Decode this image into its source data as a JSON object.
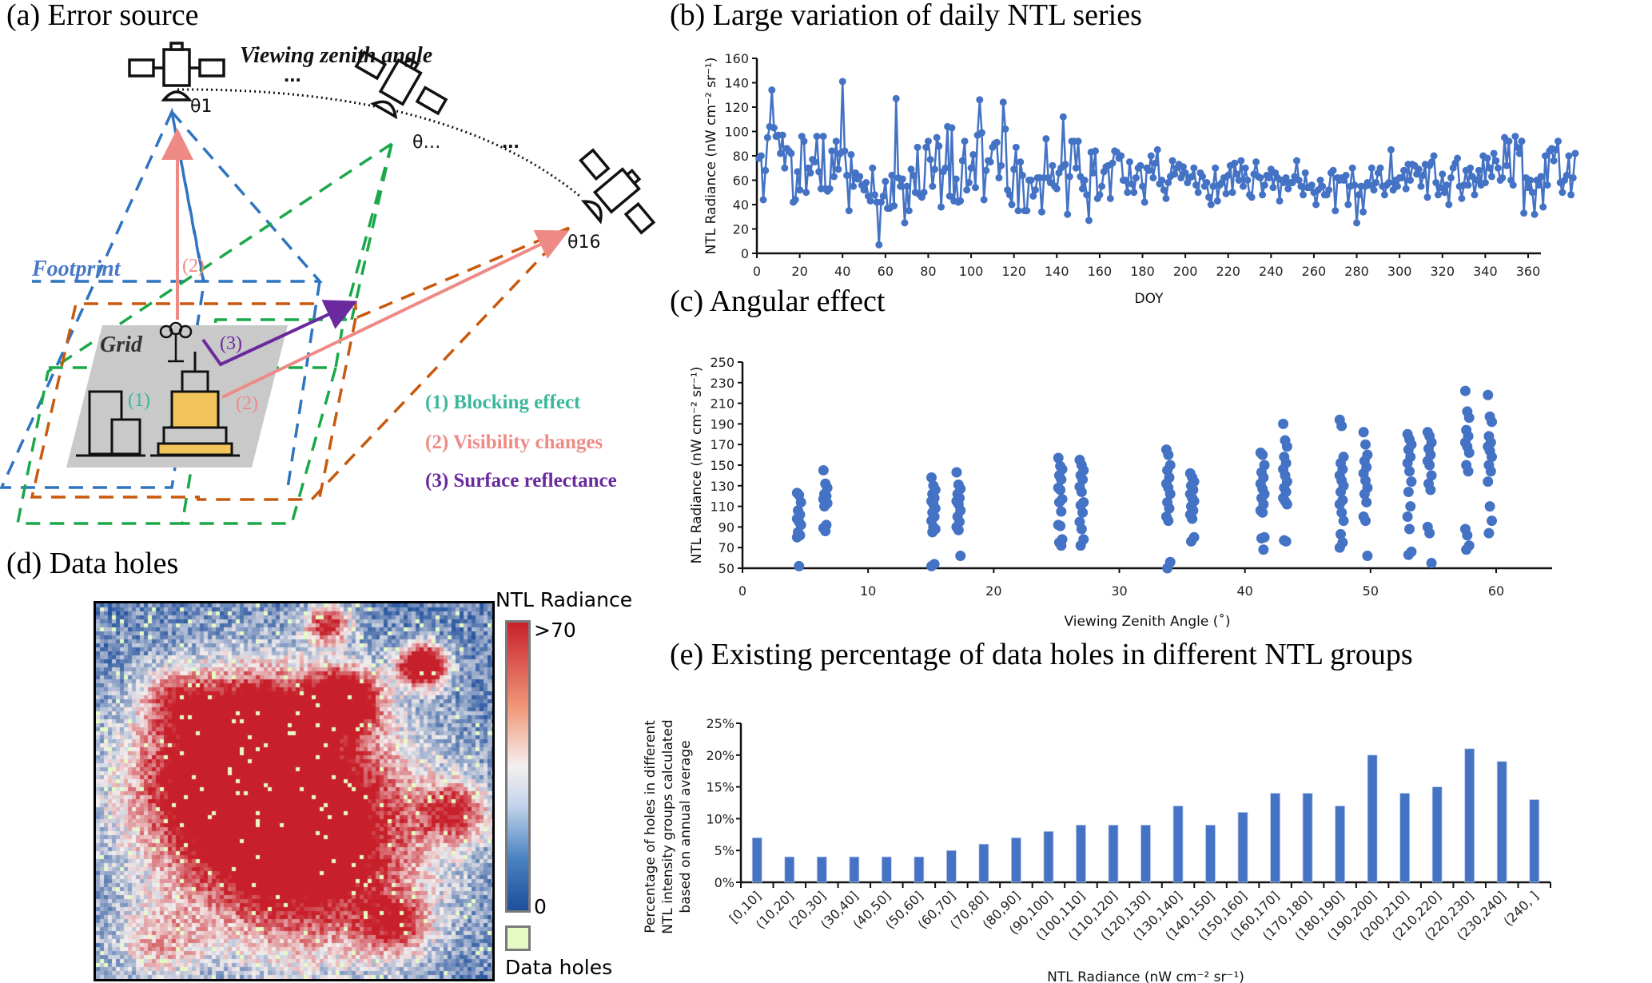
{
  "panels": {
    "a": {
      "title": "(a) Error source",
      "viewing_zenith_angle_label": "Viewing zenith angle",
      "ellipsis": "...",
      "theta_labels": [
        "θ1",
        "θ…",
        "θ16"
      ],
      "footprint_label": "Footprint",
      "grid_label": "Grid",
      "marker_1": "(1)",
      "marker_2": "(2)",
      "marker_3": "(3)",
      "legend": [
        {
          "label": "(1) Blocking effect",
          "color": "#3bb89a"
        },
        {
          "label": "(2) Visibility changes",
          "color": "#ee8a86"
        },
        {
          "label": "(3) Surface reflectance",
          "color": "#6a2a9e"
        }
      ],
      "footprint_colors": {
        "theta1": "#2f74c0",
        "theta_mid": "#1aa84a",
        "theta16": "#c8590e"
      }
    },
    "d": {
      "title": "(d) Data holes",
      "colorbar_title": "NTL Radiance",
      "colorbar_max_label": ">70",
      "colorbar_min_label": "0",
      "holes_label": "Data holes",
      "colors": {
        "low": "#1f4f9c",
        "mid": "#f4efee",
        "high": "#c8202a",
        "hole": "#e6fbc4"
      }
    }
  },
  "chart_data": [
    {
      "id": "b",
      "type": "line",
      "title": "(b) Large variation of daily NTL series",
      "xlabel": "DOY",
      "ylabel": "NTL Radiance (nW cm⁻² sr⁻¹)",
      "xlim": [
        0,
        365
      ],
      "ylim": [
        0,
        160
      ],
      "xticks": [
        0,
        20,
        40,
        60,
        80,
        100,
        120,
        140,
        160,
        180,
        200,
        220,
        240,
        260,
        280,
        300,
        320,
        340,
        360
      ],
      "yticks": [
        0,
        20,
        40,
        60,
        80,
        100,
        120,
        140,
        160
      ],
      "color": "#4472c4",
      "x_start": 1,
      "values": [
        78,
        80,
        44,
        68,
        95,
        104,
        134,
        103,
        96,
        97,
        82,
        97,
        70,
        86,
        84,
        82,
        42,
        44,
        67,
        52,
        96,
        92,
        50,
        70,
        66,
        77,
        75,
        96,
        67,
        53,
        96,
        53,
        51,
        53,
        84,
        63,
        92,
        69,
        82,
        141,
        84,
        64,
        35,
        81,
        55,
        66,
        61,
        63,
        56,
        52,
        58,
        47,
        43,
        70,
        48,
        42,
        7,
        42,
        47,
        59,
        37,
        37,
        64,
        39,
        127,
        62,
        55,
        61,
        25,
        55,
        35,
        69,
        64,
        50,
        87,
        48,
        46,
        50,
        87,
        92,
        77,
        55,
        69,
        95,
        88,
        38,
        67,
        70,
        104,
        47,
        103,
        43,
        61,
        42,
        43,
        76,
        92,
        52,
        58,
        70,
        81,
        54,
        97,
        126,
        99,
        44,
        68,
        76,
        75,
        87,
        90,
        91,
        62,
        72,
        124,
        102,
        52,
        48,
        40,
        69,
        87,
        35,
        75,
        64,
        35,
        35,
        60,
        60,
        47,
        52,
        62,
        62,
        34,
        62,
        94,
        62,
        58,
        72,
        55,
        53,
        66,
        70,
        112,
        73,
        32,
        63,
        92,
        92,
        70,
        92,
        63,
        53,
        60,
        48,
        27,
        83,
        66,
        84,
        45,
        48,
        55,
        67,
        71,
        72,
        45,
        74,
        84,
        83,
        78,
        80,
        60,
        60,
        50,
        75,
        57,
        50,
        62,
        70,
        72,
        55,
        42,
        70,
        68,
        80,
        62,
        74,
        85,
        57,
        60,
        52,
        45,
        58,
        63,
        76,
        65,
        70,
        73,
        62,
        71,
        66,
        58,
        62,
        63,
        70,
        56,
        50,
        66,
        63,
        55,
        58,
        46,
        40,
        55,
        70,
        43,
        56,
        58,
        62,
        49,
        64,
        72,
        50,
        74,
        65,
        60,
        76,
        55,
        70,
        60,
        48,
        46,
        65,
        75,
        63,
        62,
        48,
        56,
        64,
        62,
        69,
        54,
        66,
        62,
        43,
        60,
        58,
        62,
        53,
        58,
        58,
        63,
        76,
        60,
        55,
        48,
        66,
        54,
        54,
        56,
        50,
        40,
        52,
        60,
        55,
        48,
        48,
        52,
        66,
        68,
        35,
        62,
        60,
        62,
        60,
        64,
        40,
        55,
        70,
        56,
        25,
        48,
        55,
        34,
        55,
        58,
        56,
        70,
        52,
        58,
        66,
        70,
        55,
        48,
        56,
        58,
        85,
        52,
        60,
        55,
        62,
        62,
        68,
        53,
        73,
        60,
        73,
        72,
        65,
        69,
        55,
        64,
        73,
        46,
        72,
        75,
        80,
        58,
        48,
        54,
        65,
        50,
        56,
        40,
        62,
        70,
        74,
        78,
        55,
        45,
        56,
        68,
        56,
        70,
        63,
        48,
        60,
        68,
        56,
        80,
        58,
        78,
        70,
        63,
        82,
        76,
        70,
        60,
        62,
        95,
        72,
        92,
        60,
        56,
        96,
        87,
        82,
        92,
        33,
        62,
        54,
        60,
        50,
        32,
        60,
        56,
        63,
        38,
        80,
        56,
        84,
        86,
        76,
        85,
        92,
        58,
        50,
        60,
        64,
        80,
        48,
        62,
        82
      ]
    },
    {
      "id": "c",
      "type": "scatter",
      "title": "(c) Angular effect",
      "xlabel": "Viewing Zenith Angle (˚)",
      "ylabel": "NTL Radiance (nW cm⁻² sr⁻¹)",
      "xlim": [
        0,
        65
      ],
      "ylim": [
        50,
        250
      ],
      "xticks": [
        0,
        10,
        20,
        30,
        40,
        50,
        60
      ],
      "yticks": [
        50,
        70,
        90,
        110,
        130,
        150,
        170,
        190,
        210,
        230,
        250
      ],
      "color": "#4472c4",
      "groups": [
        {
          "x": 4.5,
          "y": [
            123,
            121,
            114,
            106,
            102,
            98,
            95,
            92,
            85,
            82,
            80,
            52
          ]
        },
        {
          "x": 6.6,
          "y": [
            145,
            132,
            128,
            122,
            120,
            117,
            116,
            113,
            110,
            92,
            89,
            86
          ]
        },
        {
          "x": 15.2,
          "y": [
            138,
            130,
            126,
            122,
            118,
            115,
            112,
            108,
            104,
            100,
            96,
            90,
            88,
            85,
            54,
            52
          ]
        },
        {
          "x": 17.2,
          "y": [
            143,
            131,
            127,
            122,
            118,
            115,
            112,
            106,
            100,
            95,
            90,
            87,
            62
          ]
        },
        {
          "x": 25.3,
          "y": [
            157,
            149,
            146,
            140,
            136,
            128,
            126,
            117,
            114,
            105,
            92,
            91,
            78,
            75,
            72
          ]
        },
        {
          "x": 27.0,
          "y": [
            155,
            150,
            145,
            140,
            136,
            129,
            124,
            114,
            111,
            104,
            95,
            88,
            78,
            72
          ]
        },
        {
          "x": 33.9,
          "y": [
            165,
            160,
            150,
            145,
            138,
            132,
            128,
            122,
            114,
            108,
            100,
            96,
            56,
            50
          ]
        },
        {
          "x": 35.8,
          "y": [
            142,
            138,
            134,
            130,
            126,
            122,
            118,
            115,
            110,
            106,
            102,
            98,
            80,
            76
          ]
        },
        {
          "x": 41.4,
          "y": [
            162,
            160,
            150,
            143,
            138,
            132,
            127,
            122,
            118,
            112,
            106,
            104,
            80,
            79,
            68
          ]
        },
        {
          "x": 43.2,
          "y": [
            190,
            174,
            168,
            158,
            152,
            146,
            140,
            134,
            128,
            124,
            118,
            115,
            112,
            77,
            76
          ]
        },
        {
          "x": 47.7,
          "y": [
            194,
            188,
            158,
            152,
            146,
            140,
            135,
            130,
            124,
            116,
            112,
            104,
            96,
            83,
            75,
            70
          ]
        },
        {
          "x": 49.6,
          "y": [
            182,
            170,
            160,
            154,
            148,
            142,
            135,
            128,
            122,
            114,
            100,
            96,
            62
          ]
        },
        {
          "x": 53.1,
          "y": [
            180,
            175,
            170,
            165,
            158,
            152,
            144,
            134,
            124,
            110,
            100,
            88,
            66,
            63
          ]
        },
        {
          "x": 54.7,
          "y": [
            182,
            178,
            172,
            166,
            160,
            154,
            150,
            140,
            132,
            126,
            90,
            84,
            55
          ]
        },
        {
          "x": 57.7,
          "y": [
            222,
            202,
            196,
            184,
            178,
            172,
            168,
            162,
            150,
            144,
            88,
            82,
            72,
            68
          ]
        },
        {
          "x": 59.5,
          "y": [
            218,
            197,
            192,
            178,
            172,
            168,
            164,
            158,
            150,
            144,
            134,
            110,
            96,
            84
          ]
        }
      ]
    },
    {
      "id": "e",
      "type": "bar",
      "title": "(e) Existing percentage of data holes in different NTL groups",
      "xlabel": "NTL Radiance (nW cm⁻² sr⁻¹)",
      "ylabel": "Percentage of holes in different NTL intensity groups calculated based on annual average",
      "ylabel_lines": [
        "Percentage of holes in different",
        "NTL intensity groups calculated",
        "based on annual average"
      ],
      "ylim": [
        0,
        25
      ],
      "yticks": [
        "0%",
        "5%",
        "10%",
        "15%",
        "20%",
        "25%"
      ],
      "color": "#4472c4",
      "categories": [
        "[0,10]",
        "(10,20]",
        "(20,30]",
        "(30,40]",
        "(40,50]",
        "(50,60]",
        "(60,70]",
        "(70,80]",
        "(80,90]",
        "(90,100]",
        "(100,110]",
        "(110,120]",
        "(120,130]",
        "(130,140]",
        "(140,150]",
        "(150,160]",
        "(160,170]",
        "(170,180]",
        "(180,190]",
        "(190,200]",
        "(200,210]",
        "(210,220]",
        "(220,230]",
        "(230,240]",
        "(240, ]"
      ],
      "values": [
        7,
        4,
        4,
        4,
        4,
        4,
        5,
        6,
        7,
        8,
        9,
        9,
        9,
        12,
        9,
        11,
        14,
        14,
        12,
        20,
        14,
        15,
        21,
        19,
        13
      ]
    }
  ]
}
